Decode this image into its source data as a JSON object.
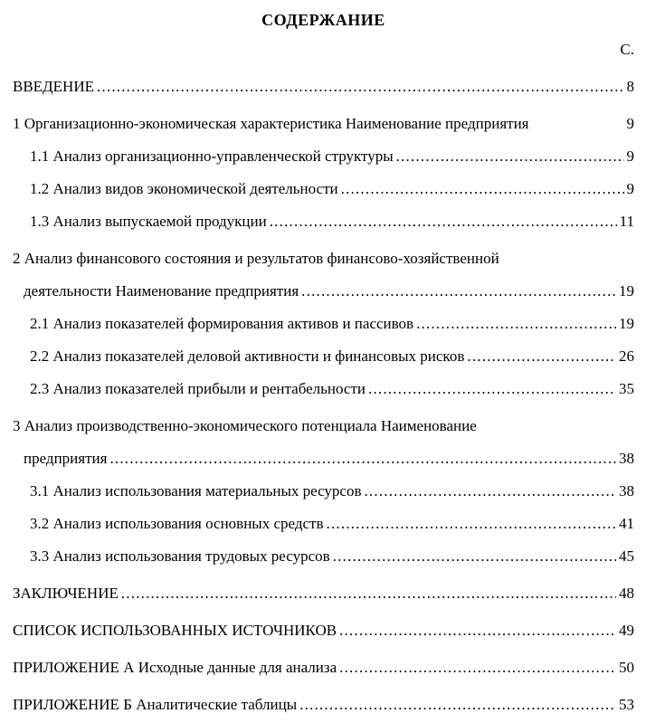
{
  "page": {
    "title": "СОДЕРЖАНИЕ",
    "page_column_label": "С.",
    "toc_rows": [
      {
        "text": "ВВЕДЕНИЕ",
        "page": "8",
        "dots": true,
        "indent": 0
      },
      {
        "text": "1 Организационно-экономическая характеристика Наименование предприятия",
        "page": "9",
        "dots": false,
        "indent": 0
      },
      {
        "text": "1.1 Анализ организационно-управленческой структуры",
        "page": "9",
        "dots": true,
        "indent": 2
      },
      {
        "text": "1.2 Анализ видов экономической деятельности",
        "page": "9",
        "dots": true,
        "indent": 2
      },
      {
        "text": "1.3 Анализ выпускаемой продукции",
        "page": "11",
        "dots": true,
        "indent": 2
      },
      {
        "text": "2 Анализ финансового состояния и результатов финансово-хозяйственной",
        "page": "",
        "dots": false,
        "indent": 0
      },
      {
        "text": "деятельности Наименование предприятия",
        "page": "19",
        "dots": true,
        "indent": 1
      },
      {
        "text": "2.1 Анализ показателей формирования активов и пассивов",
        "page": "19",
        "dots": true,
        "indent": 2
      },
      {
        "text": "2.2 Анализ показателей деловой активности и финансовых рисков",
        "page": "26",
        "dots": true,
        "indent": 2
      },
      {
        "text": "2.3 Анализ показателей прибыли и рентабельности",
        "page": "35",
        "dots": true,
        "indent": 2
      },
      {
        "text": "3 Анализ производственно-экономического потенциала Наименование",
        "page": "",
        "dots": false,
        "indent": 0
      },
      {
        "text": "предприятия",
        "page": "38",
        "dots": true,
        "indent": 1
      },
      {
        "text": "3.1 Анализ использования материальных ресурсов",
        "page": "38",
        "dots": true,
        "indent": 2
      },
      {
        "text": "3.2 Анализ использования основных средств",
        "page": "41",
        "dots": true,
        "indent": 2
      },
      {
        "text": "3.3 Анализ использования трудовых ресурсов",
        "page": "45",
        "dots": true,
        "indent": 2
      },
      {
        "text": "ЗАКЛЮЧЕНИЕ",
        "page": "48",
        "dots": true,
        "indent": 0
      },
      {
        "text": "СПИСОК ИСПОЛЬЗОВАННЫХ ИСТОЧНИКОВ",
        "page": "49",
        "dots": true,
        "indent": 0
      },
      {
        "text": "ПРИЛОЖЕНИЕ А Исходные данные для анализа",
        "page": "50",
        "dots": true,
        "indent": 0
      },
      {
        "text": "ПРИЛОЖЕНИЕ Б Аналитические таблицы",
        "page": "53",
        "dots": true,
        "indent": 0
      }
    ]
  }
}
